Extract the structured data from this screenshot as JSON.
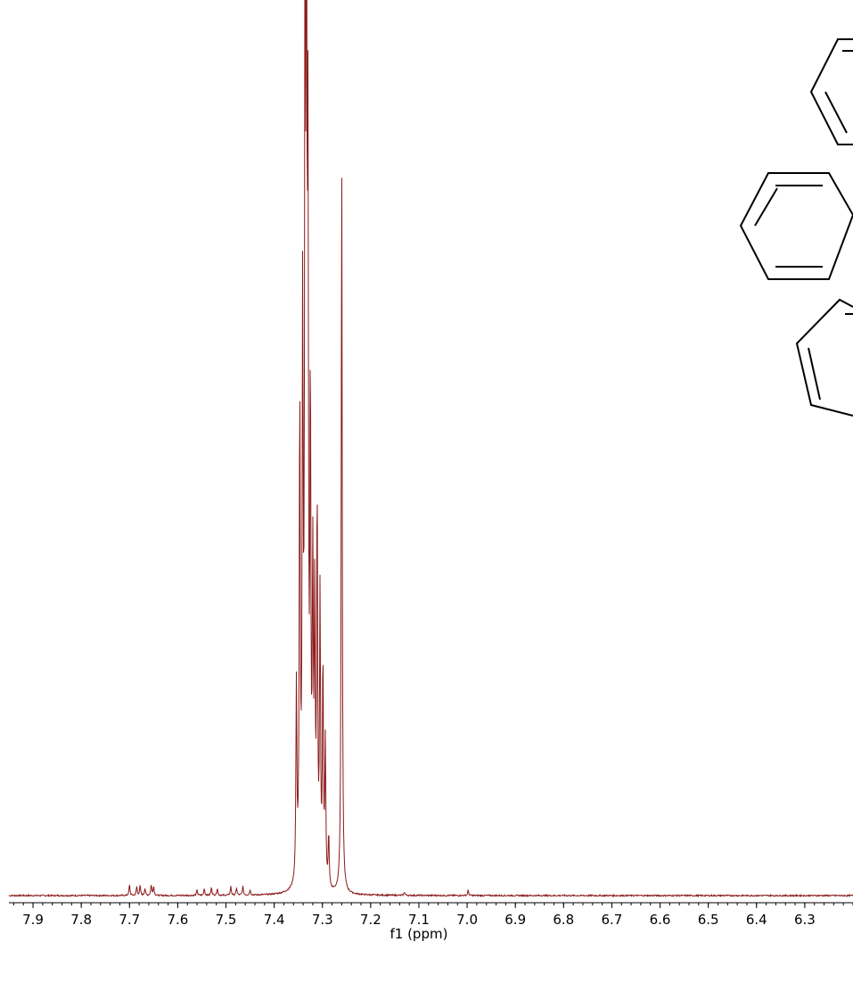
{
  "chart_data": {
    "type": "line",
    "title": "",
    "xlabel": "f1 (ppm)",
    "ylabel": "",
    "x_reversed": true,
    "xlim": [
      7.95,
      6.2
    ],
    "ylim": [
      -0.03,
      1.02
    ],
    "grid": false,
    "legend": "none",
    "x_ticks": [
      7.9,
      7.8,
      7.7,
      7.6,
      7.5,
      7.4,
      7.3,
      7.2,
      7.1,
      7.0,
      6.9,
      6.8,
      6.7,
      6.6,
      6.5,
      6.4,
      6.3
    ],
    "tick_labels": [
      "7.9",
      "7.8",
      "7.7",
      "7.6",
      "7.5",
      "7.4",
      "7.3",
      "7.2",
      "7.1",
      "7.0",
      "6.9",
      "6.8",
      "6.7",
      "6.6",
      "6.5",
      "6.4",
      "6.3"
    ],
    "series": [
      {
        "color": "#8b1a1a",
        "peaks": [
          {
            "ppm": 7.7,
            "height": 0.012
          },
          {
            "ppm": 7.685,
            "height": 0.01
          },
          {
            "ppm": 7.678,
            "height": 0.011
          },
          {
            "ppm": 7.668,
            "height": 0.008
          },
          {
            "ppm": 7.655,
            "height": 0.012
          },
          {
            "ppm": 7.65,
            "height": 0.01
          },
          {
            "ppm": 7.56,
            "height": 0.006
          },
          {
            "ppm": 7.545,
            "height": 0.008
          },
          {
            "ppm": 7.53,
            "height": 0.009
          },
          {
            "ppm": 7.518,
            "height": 0.008
          },
          {
            "ppm": 7.49,
            "height": 0.01
          },
          {
            "ppm": 7.478,
            "height": 0.008
          },
          {
            "ppm": 7.465,
            "height": 0.01
          },
          {
            "ppm": 7.45,
            "height": 0.006
          },
          {
            "ppm": 7.354,
            "height": 0.22
          },
          {
            "ppm": 7.347,
            "height": 0.54
          },
          {
            "ppm": 7.341,
            "height": 0.62
          },
          {
            "ppm": 7.336,
            "height": 0.99
          },
          {
            "ppm": 7.333,
            "height": 0.98
          },
          {
            "ppm": 7.33,
            "height": 0.73
          },
          {
            "ppm": 7.325,
            "height": 0.53
          },
          {
            "ppm": 7.32,
            "height": 0.34
          },
          {
            "ppm": 7.316,
            "height": 0.3
          },
          {
            "ppm": 7.311,
            "height": 0.43
          },
          {
            "ppm": 7.305,
            "height": 0.32
          },
          {
            "ppm": 7.299,
            "height": 0.25
          },
          {
            "ppm": 7.294,
            "height": 0.16
          },
          {
            "ppm": 7.287,
            "height": 0.06
          },
          {
            "ppm": 7.26,
            "height": 0.83
          },
          {
            "ppm": 7.13,
            "height": 0.004
          },
          {
            "ppm": 6.998,
            "height": 0.006
          }
        ]
      }
    ]
  }
}
